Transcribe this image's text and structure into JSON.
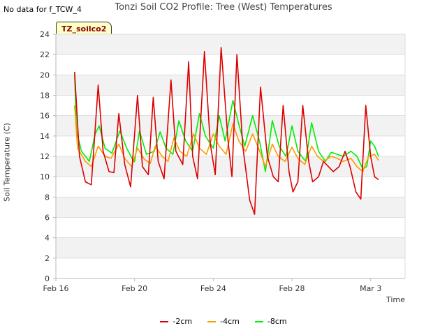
{
  "header": {
    "nodata": "No data for f_TCW_4",
    "title": "Tonzi Soil CO2 Profile: Tree (West) Temperatures",
    "tag": "TZ_soilco2"
  },
  "chart_data": {
    "type": "line",
    "title": "Tonzi Soil CO2 Profile: Tree (West) Temperatures",
    "xlabel": "Time",
    "ylabel": "Soil Temperature (C)",
    "xlim": [
      16,
      33.75
    ],
    "ylim": [
      0,
      24
    ],
    "xticks": [
      {
        "value": 16,
        "label": "Feb 16"
      },
      {
        "value": 20,
        "label": "Feb 20"
      },
      {
        "value": 24,
        "label": "Feb 24"
      },
      {
        "value": 28,
        "label": "Feb 28"
      },
      {
        "value": 32,
        "label": "Mar 3"
      }
    ],
    "yticks": [
      0,
      2,
      4,
      6,
      8,
      10,
      12,
      14,
      16,
      18,
      20,
      22,
      24
    ],
    "series": [
      {
        "name": "-2cm",
        "color": "#dd0000",
        "x": [
          16.95,
          17.2,
          17.5,
          17.8,
          18.15,
          18.4,
          18.7,
          18.95,
          19.2,
          19.5,
          19.8,
          20.15,
          20.4,
          20.7,
          20.95,
          21.2,
          21.5,
          21.85,
          22.1,
          22.45,
          22.75,
          22.95,
          23.2,
          23.55,
          23.85,
          24.1,
          24.4,
          24.75,
          24.95,
          25.2,
          25.5,
          25.85,
          26.1,
          26.4,
          26.75,
          27.05,
          27.3,
          27.55,
          27.85,
          28.05,
          28.3,
          28.55,
          28.85,
          29.05,
          29.35,
          29.6,
          29.85,
          30.1,
          30.4,
          30.7,
          30.95,
          31.25,
          31.5,
          31.75,
          32.0,
          32.2,
          32.4
        ],
        "y": [
          20.3,
          12.0,
          9.5,
          9.2,
          19.0,
          12.5,
          10.5,
          10.4,
          16.2,
          11.2,
          9.0,
          18.0,
          11.0,
          10.2,
          17.8,
          11.5,
          9.8,
          19.5,
          12.5,
          11.2,
          21.3,
          12.0,
          9.8,
          22.3,
          13.2,
          10.2,
          22.7,
          13.5,
          10.0,
          22.0,
          13.0,
          7.7,
          6.3,
          18.8,
          12.0,
          10.0,
          9.5,
          17.0,
          10.5,
          8.5,
          9.5,
          17.0,
          11.5,
          9.5,
          10.0,
          11.5,
          11.0,
          10.5,
          11.0,
          12.5,
          11.0,
          8.5,
          7.8,
          17.0,
          12.0,
          10.0,
          9.7
        ]
      },
      {
        "name": "-4cm",
        "color": "#ff9900",
        "x": [
          16.95,
          17.1,
          17.5,
          17.8,
          18.15,
          18.5,
          18.8,
          19.2,
          19.5,
          19.85,
          20.15,
          20.5,
          20.8,
          21.05,
          21.4,
          21.7,
          22.0,
          22.3,
          22.65,
          23.0,
          23.3,
          23.65,
          24.0,
          24.3,
          24.65,
          25.0,
          25.3,
          25.65,
          26.0,
          26.3,
          26.65,
          27.0,
          27.3,
          27.65,
          28.0,
          28.3,
          28.65,
          29.0,
          29.3,
          29.6,
          30.0,
          30.3,
          30.6,
          31.0,
          31.3,
          31.6,
          31.9,
          32.2,
          32.4
        ],
        "y": [
          17.0,
          12.8,
          11.5,
          11.0,
          13.0,
          12.0,
          11.8,
          13.2,
          11.8,
          11.0,
          12.8,
          11.7,
          11.3,
          13.0,
          12.0,
          11.5,
          13.8,
          12.5,
          12.0,
          14.2,
          12.8,
          12.2,
          14.2,
          13.0,
          12.2,
          15.2,
          13.5,
          12.5,
          14.2,
          12.8,
          11.0,
          13.2,
          12.0,
          11.5,
          12.9,
          11.8,
          11.2,
          13.0,
          12.0,
          11.5,
          12.0,
          11.8,
          11.5,
          11.8,
          11.0,
          10.5,
          12.0,
          12.2,
          11.6
        ]
      },
      {
        "name": "-8cm",
        "color": "#00ee00",
        "x": [
          16.95,
          17.05,
          17.3,
          17.7,
          18.0,
          18.2,
          18.5,
          18.85,
          19.25,
          19.6,
          19.95,
          20.0,
          20.25,
          20.6,
          21.0,
          21.3,
          21.6,
          21.95,
          22.25,
          22.6,
          22.95,
          23.3,
          23.6,
          24.0,
          24.3,
          24.6,
          25.0,
          25.25,
          25.6,
          26.0,
          26.35,
          26.65,
          27.0,
          27.35,
          27.7,
          28.0,
          28.3,
          28.7,
          29.0,
          29.35,
          29.7,
          30.0,
          30.3,
          30.6,
          31.0,
          31.3,
          31.6,
          31.8,
          32.0,
          32.2,
          32.4
        ],
        "y": [
          20.0,
          14.5,
          12.5,
          11.5,
          14.2,
          15.0,
          12.8,
          12.3,
          14.5,
          12.8,
          11.5,
          11.5,
          14.5,
          12.2,
          12.5,
          14.4,
          12.8,
          12.2,
          15.5,
          13.5,
          12.5,
          16.2,
          14.0,
          12.8,
          16.0,
          13.5,
          17.5,
          15.5,
          13.0,
          16.0,
          13.5,
          10.5,
          15.5,
          13.0,
          12.0,
          15.0,
          12.5,
          11.5,
          15.3,
          12.5,
          11.5,
          12.4,
          12.2,
          12.0,
          12.5,
          12.0,
          10.8,
          11.0,
          13.5,
          13.0,
          12.0
        ]
      }
    ]
  }
}
